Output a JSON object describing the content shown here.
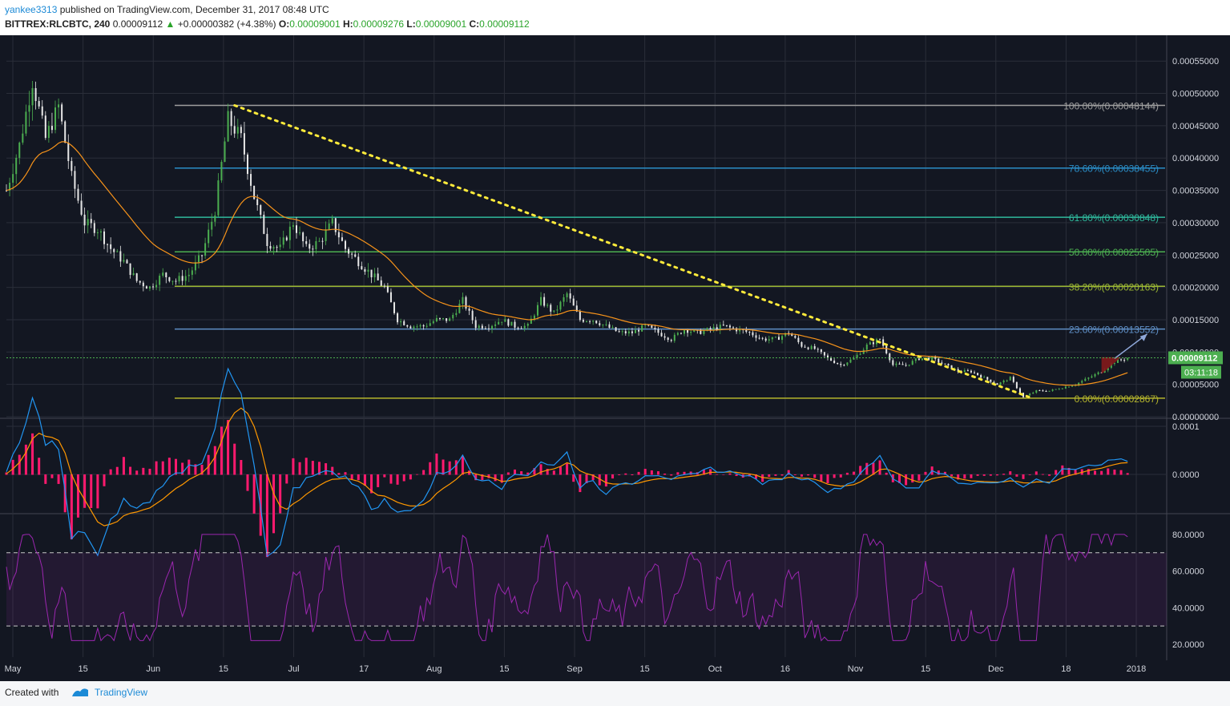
{
  "header": {
    "user": "yankee3313",
    "published": "published on TradingView.com, December 31, 2017 08:48 UTC",
    "symbol": "BITTREX:RLCBTC, 240",
    "last": "0.00009112",
    "up_arrow": "▲",
    "change": "+0.00000382 (+4.38%)",
    "open_label": "O:",
    "open": "0.00009001",
    "high_label": "H:",
    "high": "0.00009276",
    "low_label": "L:",
    "low": "0.00009001",
    "close_label": "C:",
    "close": "0.00009112"
  },
  "footer": {
    "created": "Created with",
    "brand": "TradingView"
  },
  "colors": {
    "background": "#131722",
    "grid": "#2a2e39",
    "up": "#4caf50",
    "down": "#e8e8e8",
    "ma": "#f7931a",
    "trendline": "#ffeb3b",
    "macd": "#2196f3",
    "signal": "#ff9800",
    "histogram": "#ff1a6e",
    "rsi": "#9c27b0"
  },
  "chart_data": [
    {
      "type": "candlestick",
      "name": "price",
      "x_ticks": [
        "May",
        "15",
        "Jun",
        "15",
        "Jul",
        "17",
        "Aug",
        "15",
        "Sep",
        "15",
        "Oct",
        "16",
        "Nov",
        "15",
        "Dec",
        "18",
        "2018"
      ],
      "y_ticks": [
        "0.00055000",
        "0.00050000",
        "0.00045000",
        "0.00040000",
        "0.00035000",
        "0.00030000",
        "0.00025000",
        "0.00020000",
        "0.00015000",
        "0.00010000",
        "0.00005000",
        "0.00000000"
      ],
      "ylim": [
        0,
        0.00058
      ],
      "last_price_label": "0.00009112",
      "countdown_label": "03:11:18",
      "last_price": 9.112e-05,
      "series_path": [
        {
          "t": 0,
          "p": 0.00035
        },
        {
          "t": 2,
          "p": 0.00042
        },
        {
          "t": 4,
          "p": 0.00052
        },
        {
          "t": 6,
          "p": 0.00043
        },
        {
          "t": 8,
          "p": 0.00048
        },
        {
          "t": 10,
          "p": 0.00037
        },
        {
          "t": 12,
          "p": 0.0003
        },
        {
          "t": 14,
          "p": 0.00029
        },
        {
          "t": 16,
          "p": 0.00026
        },
        {
          "t": 18,
          "p": 0.00024
        },
        {
          "t": 20,
          "p": 0.00021
        },
        {
          "t": 22,
          "p": 0.0002
        },
        {
          "t": 24,
          "p": 0.00022
        },
        {
          "t": 26,
          "p": 0.00021
        },
        {
          "t": 28,
          "p": 0.00022
        },
        {
          "t": 30,
          "p": 0.00025
        },
        {
          "t": 32,
          "p": 0.00032
        },
        {
          "t": 34,
          "p": 0.00046
        },
        {
          "t": 36,
          "p": 0.00043
        },
        {
          "t": 38,
          "p": 0.00034
        },
        {
          "t": 40,
          "p": 0.00027
        },
        {
          "t": 42,
          "p": 0.00026
        },
        {
          "t": 44,
          "p": 0.0003
        },
        {
          "t": 46,
          "p": 0.00026
        },
        {
          "t": 48,
          "p": 0.00027
        },
        {
          "t": 50,
          "p": 0.0003
        },
        {
          "t": 52,
          "p": 0.00026
        },
        {
          "t": 54,
          "p": 0.00024
        },
        {
          "t": 56,
          "p": 0.00022
        },
        {
          "t": 58,
          "p": 0.0002
        },
        {
          "t": 60,
          "p": 0.00015
        },
        {
          "t": 62,
          "p": 0.00014
        },
        {
          "t": 64,
          "p": 0.00014
        },
        {
          "t": 66,
          "p": 0.00015
        },
        {
          "t": 68,
          "p": 0.00015
        },
        {
          "t": 70,
          "p": 0.00018
        },
        {
          "t": 72,
          "p": 0.00014
        },
        {
          "t": 74,
          "p": 0.00014
        },
        {
          "t": 76,
          "p": 0.00015
        },
        {
          "t": 78,
          "p": 0.00014
        },
        {
          "t": 80,
          "p": 0.00014
        },
        {
          "t": 82,
          "p": 0.00018
        },
        {
          "t": 84,
          "p": 0.00016
        },
        {
          "t": 86,
          "p": 0.00019
        },
        {
          "t": 88,
          "p": 0.00015
        },
        {
          "t": 90,
          "p": 0.00015
        },
        {
          "t": 92,
          "p": 0.00014
        },
        {
          "t": 94,
          "p": 0.00013
        },
        {
          "t": 96,
          "p": 0.00013
        },
        {
          "t": 98,
          "p": 0.00014
        },
        {
          "t": 100,
          "p": 0.00013
        },
        {
          "t": 102,
          "p": 0.00012
        },
        {
          "t": 104,
          "p": 0.000135
        },
        {
          "t": 106,
          "p": 0.00013
        },
        {
          "t": 108,
          "p": 0.000135
        },
        {
          "t": 110,
          "p": 0.00014
        },
        {
          "t": 112,
          "p": 0.000135
        },
        {
          "t": 114,
          "p": 0.00013
        },
        {
          "t": 116,
          "p": 0.00012
        },
        {
          "t": 118,
          "p": 0.00012
        },
        {
          "t": 120,
          "p": 0.00013
        },
        {
          "t": 122,
          "p": 0.00011
        },
        {
          "t": 124,
          "p": 0.000105
        },
        {
          "t": 126,
          "p": 9e-05
        },
        {
          "t": 128,
          "p": 8e-05
        },
        {
          "t": 130,
          "p": 9e-05
        },
        {
          "t": 132,
          "p": 0.00011
        },
        {
          "t": 134,
          "p": 0.00012
        },
        {
          "t": 136,
          "p": 8e-05
        },
        {
          "t": 138,
          "p": 8e-05
        },
        {
          "t": 140,
          "p": 9e-05
        },
        {
          "t": 142,
          "p": 9e-05
        },
        {
          "t": 144,
          "p": 8e-05
        },
        {
          "t": 146,
          "p": 7e-05
        },
        {
          "t": 148,
          "p": 7e-05
        },
        {
          "t": 150,
          "p": 6e-05
        },
        {
          "t": 152,
          "p": 5e-05
        },
        {
          "t": 154,
          "p": 6e-05
        },
        {
          "t": 156,
          "p": 3e-05
        },
        {
          "t": 158,
          "p": 4e-05
        },
        {
          "t": 160,
          "p": 4e-05
        },
        {
          "t": 162,
          "p": 4.5e-05
        },
        {
          "t": 164,
          "p": 5e-05
        },
        {
          "t": 166,
          "p": 6e-05
        },
        {
          "t": 168,
          "p": 7e-05
        },
        {
          "t": 170,
          "p": 8.5e-05
        },
        {
          "t": 172,
          "p": 9.1e-05
        }
      ],
      "fibonacci": [
        {
          "label": "100.00%(0.00048144)",
          "value": 0.00048144,
          "color": "#9e9e9e"
        },
        {
          "label": "78.60%(0.00038455)",
          "value": 0.00038455,
          "color": "#2a8ec8"
        },
        {
          "label": "61.80%(0.00030848)",
          "value": 0.00030848,
          "color": "#2fb89c"
        },
        {
          "label": "50.00%(0.00025505)",
          "value": 0.00025505,
          "color": "#4caf50"
        },
        {
          "label": "38.20%(0.00020163)",
          "value": 0.00020163,
          "color": "#9cb833"
        },
        {
          "label": "23.60%(0.00013552)",
          "value": 0.00013552,
          "color": "#5f8fc6"
        },
        {
          "label": "0.00%(0.00002867)",
          "value": 2.867e-05,
          "color": "#b5b52c"
        }
      ],
      "trendline": {
        "from": {
          "t": 35,
          "p": 0.00048144
        },
        "to": {
          "t": 157,
          "p": 3e-05
        }
      },
      "projection_arrow": {
        "from": {
          "t": 170,
          "p": 9e-05
        },
        "to": {
          "t": 175,
          "p": 0.000128
        }
      }
    },
    {
      "type": "line",
      "name": "macd",
      "y_ticks": [
        "0.0001",
        "0.0000"
      ],
      "ylim": [
        -8e-05,
        0.00011
      ]
    },
    {
      "type": "line",
      "name": "rsi",
      "y_ticks": [
        "80.0000",
        "60.0000",
        "40.0000",
        "20.0000"
      ],
      "ylim": [
        13,
        90
      ],
      "bands": [
        70,
        30
      ]
    }
  ]
}
